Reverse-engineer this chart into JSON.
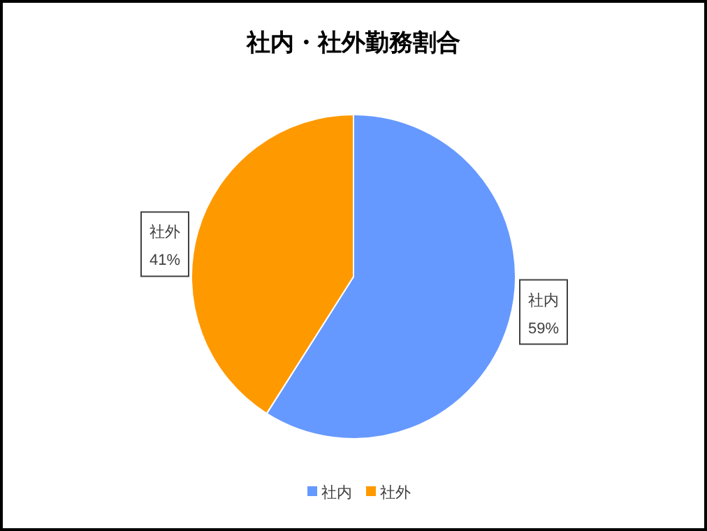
{
  "chart_data": {
    "type": "pie",
    "title": "社内・社外勤務割合",
    "categories": [
      "社内",
      "社外"
    ],
    "values": [
      59,
      41
    ],
    "colors": [
      "#6699ff",
      "#ff9900"
    ],
    "value_labels": [
      "59%",
      "41%"
    ],
    "legend": "bottom"
  }
}
